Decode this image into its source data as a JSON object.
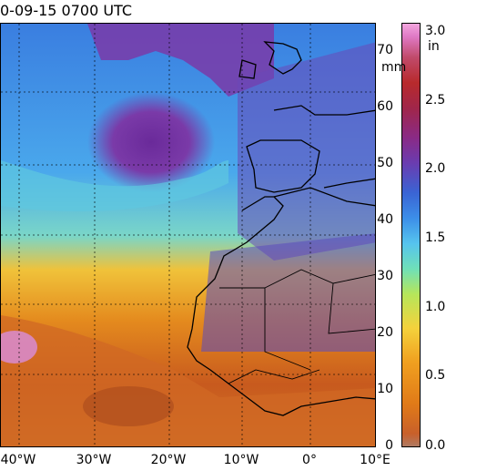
{
  "title": "0-09-15 0700 UTC",
  "lon_labels": [
    "40°W",
    "30°W",
    "20°W",
    "10°W",
    "0°",
    "10°E"
  ],
  "colorbar": {
    "mm_ticks": [
      "0",
      "10",
      "20",
      "30",
      "40",
      "50",
      "60",
      "70"
    ],
    "mm_unit": "mm",
    "in_ticks": [
      "0.0",
      "0.5",
      "1.0",
      "1.5",
      "2.0",
      "2.5",
      "3.0"
    ],
    "in_unit": "in"
  },
  "colors": {
    "ocean_low": "#e07a18",
    "ocean_mid": "#56c4ee",
    "ocean_dry": "#6a3cb0",
    "coast": "#000000"
  }
}
